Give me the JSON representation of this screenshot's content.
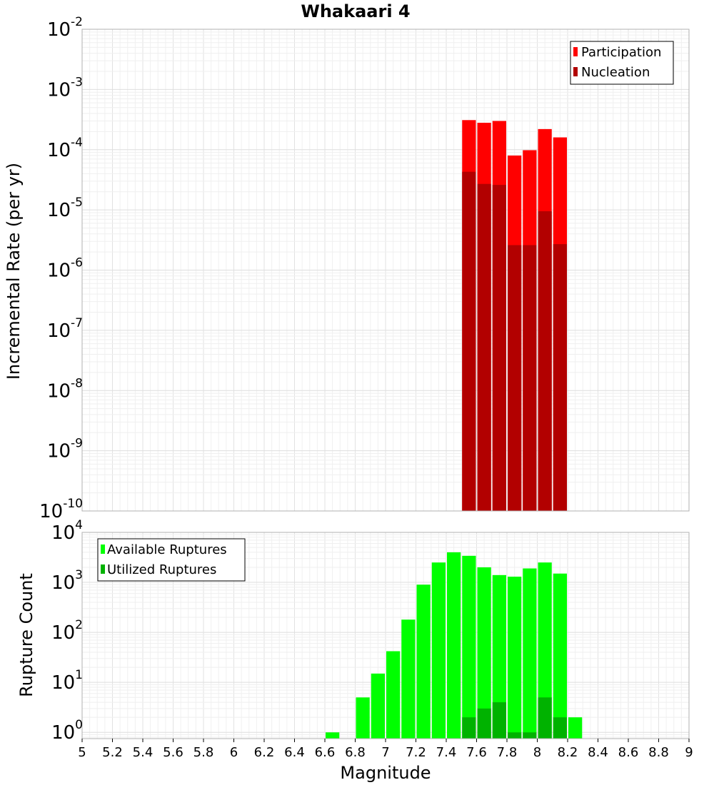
{
  "chart_data": [
    {
      "type": "bar",
      "title": "Whakaari 4",
      "xlabel": "Magnitude",
      "ylabel": "Incremental Rate (per yr)",
      "yscale": "log",
      "ylim": [
        1e-10,
        0.01
      ],
      "xlim": [
        5,
        9
      ],
      "y_tick_exponents": [
        -10,
        -9,
        -8,
        -7,
        -6,
        -5,
        -4,
        -3,
        -2
      ],
      "legend": {
        "position": "top-right",
        "entries": [
          "Participation",
          "Nucleation"
        ]
      },
      "series": [
        {
          "name": "Participation",
          "color": "#ff0000",
          "x": [
            7.55,
            7.65,
            7.75,
            7.85,
            7.95,
            8.05,
            8.15
          ],
          "values": [
            0.00031,
            0.00028,
            0.0003,
            8e-05,
            9.8e-05,
            0.00022,
            0.00016
          ]
        },
        {
          "name": "Nucleation",
          "color": "#b20000",
          "x": [
            7.55,
            7.65,
            7.75,
            7.85,
            7.95,
            8.05,
            8.15
          ],
          "values": [
            4.3e-05,
            2.7e-05,
            2.6e-05,
            2.6e-06,
            2.6e-06,
            9.5e-06,
            2.7e-06
          ]
        }
      ]
    },
    {
      "type": "bar",
      "xlabel": "Magnitude",
      "ylabel": "Rupture Count",
      "yscale": "log",
      "ylim": [
        0.75,
        10000
      ],
      "xlim": [
        5,
        9
      ],
      "y_tick_exponents": [
        0,
        1,
        2,
        3,
        4
      ],
      "x_ticks": [
        "5",
        "5.2",
        "5.4",
        "5.6",
        "5.8",
        "6",
        "6.2",
        "6.4",
        "6.6",
        "6.8",
        "7",
        "7.2",
        "7.4",
        "7.6",
        "7.8",
        "8",
        "8.2",
        "8.4",
        "8.6",
        "8.8",
        "9"
      ],
      "legend": {
        "position": "top-left",
        "entries": [
          "Available Ruptures",
          "Utilized Ruptures"
        ]
      },
      "series": [
        {
          "name": "Available Ruptures",
          "color": "#00ff00",
          "x": [
            6.65,
            6.85,
            6.95,
            7.05,
            7.15,
            7.25,
            7.35,
            7.45,
            7.55,
            7.65,
            7.75,
            7.85,
            7.95,
            8.05,
            8.15,
            8.25
          ],
          "values": [
            1,
            5,
            15,
            42,
            180,
            900,
            2500,
            4000,
            3400,
            2000,
            1400,
            1300,
            1900,
            2500,
            1500,
            2
          ]
        },
        {
          "name": "Utilized Ruptures",
          "color": "#00b200",
          "x": [
            7.55,
            7.65,
            7.75,
            7.85,
            7.95,
            8.05,
            8.15
          ],
          "values": [
            2,
            3,
            4,
            1,
            1,
            5,
            2
          ]
        }
      ]
    }
  ]
}
